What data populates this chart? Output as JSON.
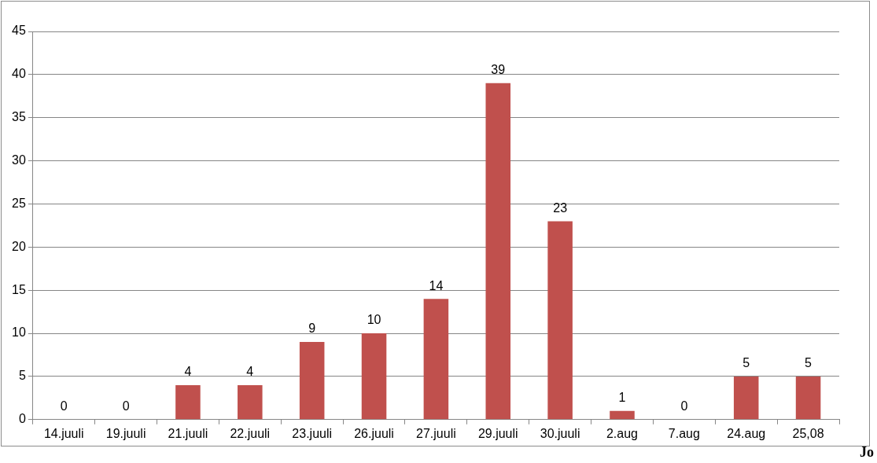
{
  "chart_data": {
    "type": "bar",
    "categories": [
      "14.juuli",
      "19.juuli",
      "21.juuli",
      "22.juuli",
      "23.juuli",
      "26.juuli",
      "27.juuli",
      "29.juuli",
      "30.juuli",
      "2.aug",
      "7.aug",
      "24.aug",
      "25,08"
    ],
    "values": [
      0,
      0,
      4,
      4,
      9,
      10,
      14,
      39,
      23,
      1,
      0,
      5,
      5
    ],
    "color": "#c0504d",
    "ylim": [
      0,
      45
    ],
    "yticks": [
      0,
      5,
      10,
      15,
      20,
      25,
      30,
      35,
      40,
      45
    ],
    "grid": "y",
    "data_labels": true,
    "legend": false,
    "annotations": [
      "Jo"
    ]
  }
}
